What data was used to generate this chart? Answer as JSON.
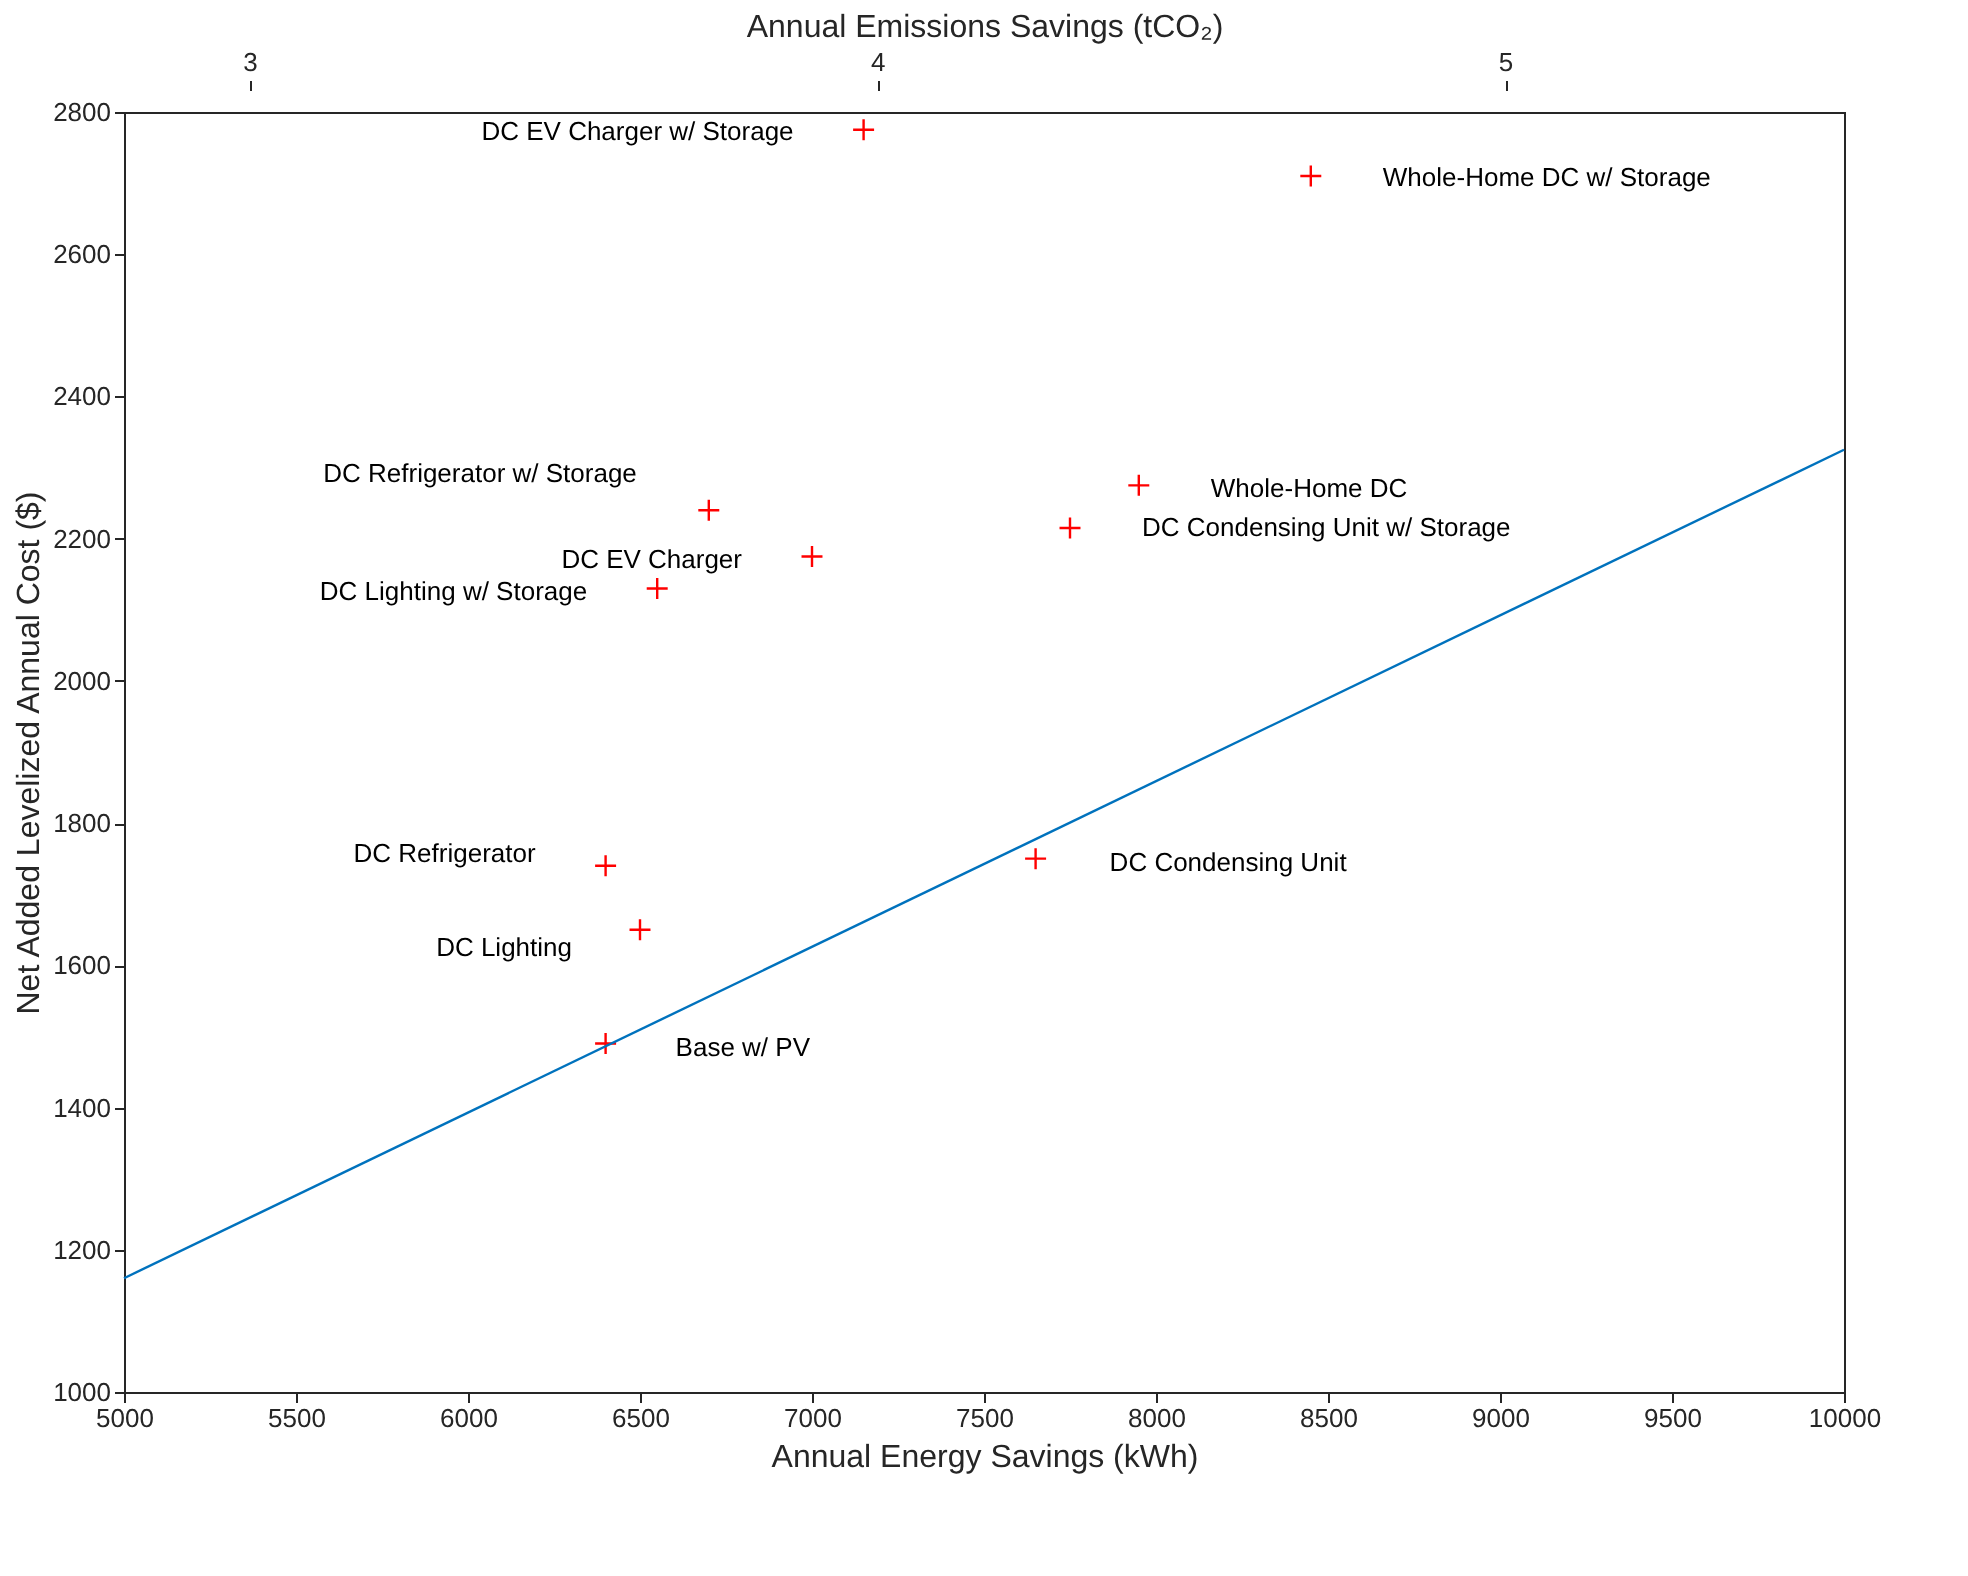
{
  "chart_data": {
    "type": "scatter",
    "xlabel": "Annual Energy Savings (kWh)",
    "ylabel": "Net Added Levelized Annual Cost ($)",
    "x2label": "Annual Emissions Savings (tCO₂)",
    "xlim": [
      5000,
      10000
    ],
    "xticks": [
      5000,
      5500,
      6000,
      6500,
      7000,
      7500,
      8000,
      8500,
      9000,
      9500,
      10000
    ],
    "ylim": [
      1000,
      2800
    ],
    "yticks": [
      1000,
      1200,
      1400,
      1600,
      1800,
      2000,
      2200,
      2400,
      2600,
      2800
    ],
    "x2lim": [
      2.8,
      5.54
    ],
    "x2ticks": [
      3,
      4,
      5
    ],
    "series": [
      {
        "marker": "cross",
        "color": "#ff0000",
        "x": [
          7150,
          8450,
          6700,
          7950,
          7750,
          7000,
          6550,
          6400,
          6500,
          6400,
          7650
        ],
        "values": [
          2775,
          2710,
          2240,
          2275,
          2215,
          2175,
          2130,
          1740,
          1650,
          1490,
          1750
        ]
      },
      {
        "type": "line",
        "color": "#0072bd",
        "x": [
          5000,
          10000
        ],
        "values": [
          1160,
          2325
        ]
      }
    ],
    "annotations": [
      {
        "text": "DC EV Charger w/ Storage",
        "x": 7150,
        "y": 2775
      },
      {
        "text": "Whole-Home DC w/ Storage",
        "x": 8450,
        "y": 2710
      },
      {
        "text": "DC Refrigerator w/ Storage",
        "x": 6700,
        "y": 2240
      },
      {
        "text": "Whole-Home DC",
        "x": 7950,
        "y": 2275
      },
      {
        "text": "DC Condensing Unit w/ Storage",
        "x": 7750,
        "y": 2215
      },
      {
        "text": "DC EV Charger",
        "x": 7000,
        "y": 2175
      },
      {
        "text": "DC Lighting w/ Storage",
        "x": 6550,
        "y": 2130
      },
      {
        "text": "DC Refrigerator",
        "x": 6400,
        "y": 1740
      },
      {
        "text": "DC Lighting",
        "x": 6500,
        "y": 1650
      },
      {
        "text": "Base w/ PV",
        "x": 6400,
        "y": 1490
      },
      {
        "text": "DC Condensing Unit",
        "x": 7650,
        "y": 1750
      }
    ]
  }
}
